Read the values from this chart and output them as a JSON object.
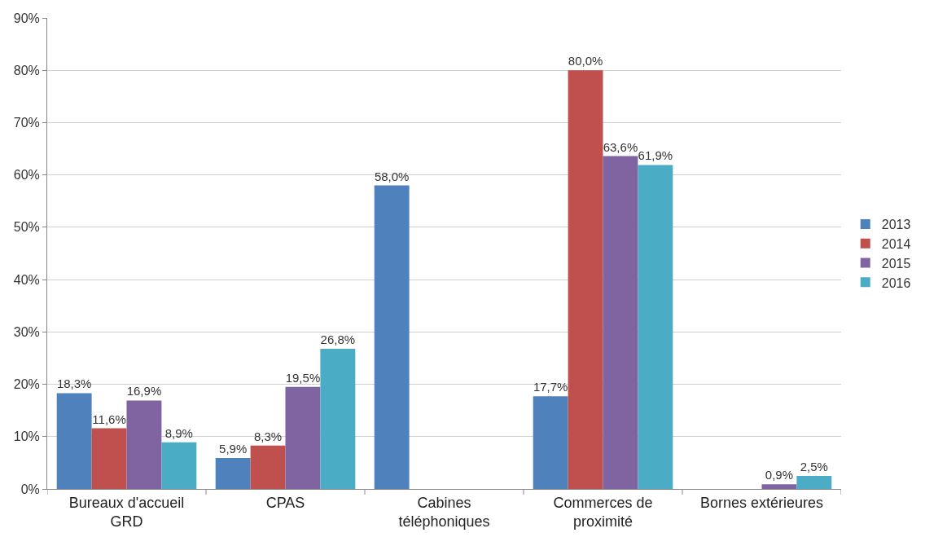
{
  "chart_data": {
    "type": "bar",
    "categories": [
      "Bureaux d'accueil GRD",
      "CPAS",
      "Cabines téléphoniques",
      "Commerces de proximité",
      "Bornes extérieures"
    ],
    "series": [
      {
        "name": "2013",
        "color": "#4f81bd",
        "values": [
          18.3,
          5.9,
          58.0,
          17.7,
          null
        ],
        "value_labels": [
          "18,3%",
          "5,9%",
          "58,0%",
          "17,7%",
          null
        ]
      },
      {
        "name": "2014",
        "color": "#c0504d",
        "values": [
          11.6,
          8.3,
          null,
          80.0,
          null
        ],
        "value_labels": [
          "11,6%",
          "8,3%",
          null,
          "80,0%",
          null
        ]
      },
      {
        "name": "2015",
        "color": "#8064a2",
        "values": [
          16.9,
          19.5,
          null,
          63.6,
          0.9
        ],
        "value_labels": [
          "16,9%",
          "19,5%",
          null,
          "63,6%",
          "0,9%"
        ]
      },
      {
        "name": "2016",
        "color": "#4bacc6",
        "values": [
          8.9,
          26.8,
          null,
          61.9,
          2.5
        ],
        "value_labels": [
          "8,9%",
          "26,8%",
          null,
          "61,9%",
          "2,5%"
        ]
      }
    ],
    "ylim": [
      0,
      90
    ],
    "yticks": [
      {
        "value": 0,
        "label": "0%"
      },
      {
        "value": 10,
        "label": "10%"
      },
      {
        "value": 20,
        "label": "20%"
      },
      {
        "value": 30,
        "label": "30%"
      },
      {
        "value": 40,
        "label": "40%"
      },
      {
        "value": 50,
        "label": "50%"
      },
      {
        "value": 60,
        "label": "60%"
      },
      {
        "value": 70,
        "label": "70%"
      },
      {
        "value": 80,
        "label": "80%"
      },
      {
        "value": 90,
        "label": "90%"
      }
    ],
    "grid": "y",
    "legend": "right"
  }
}
